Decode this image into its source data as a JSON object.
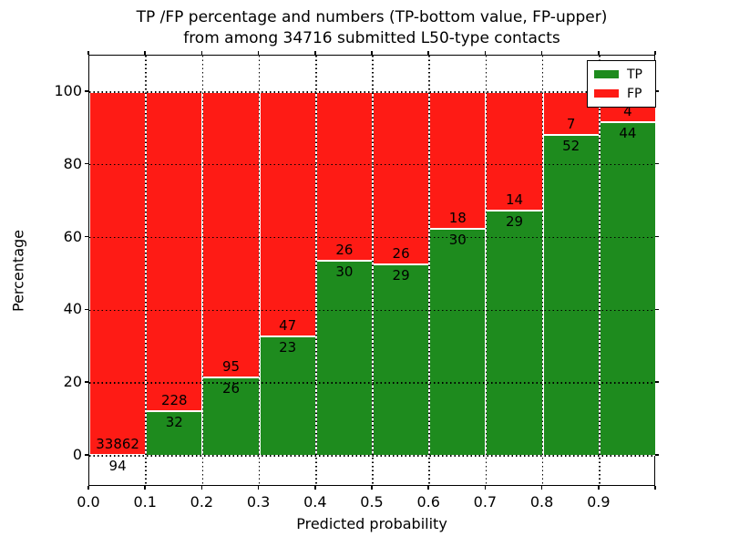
{
  "title": {
    "line1": "TP /FP percentage and numbers (TP-bottom value, FP-upper)",
    "line2": "from among 34716 submitted L50-type contacts"
  },
  "axes": {
    "xlabel": "Predicted probability",
    "ylabel": "Percentage",
    "x_tick_labels": [
      "0.0",
      "0.1",
      "0.2",
      "0.3",
      "0.4",
      "0.5",
      "0.6",
      "0.7",
      "0.8",
      "0.9"
    ],
    "y_tick_labels": [
      "0",
      "20",
      "40",
      "60",
      "80",
      "100"
    ]
  },
  "legend": {
    "items": [
      {
        "label": "TP",
        "color": "#1e8b1e"
      },
      {
        "label": "FP",
        "color": "#fe1b15"
      }
    ]
  },
  "colors": {
    "tp_green": "#1e8b1e",
    "fp_red": "#fe1b15",
    "grid": "#000000",
    "background": "#ffffff"
  },
  "chart_data": {
    "type": "bar",
    "stacked": true,
    "title": "TP /FP percentage and numbers (TP-bottom value, FP-upper) from among 34716 submitted L50-type contacts",
    "xlabel": "Predicted probability",
    "ylabel": "Percentage",
    "xlim": [
      0.0,
      1.0
    ],
    "ylim": [
      -8.5,
      110
    ],
    "grid": true,
    "legend_position": "upper right",
    "bin_edges": [
      0.0,
      0.1,
      0.2,
      0.3,
      0.4,
      0.5,
      0.6,
      0.7,
      0.8,
      0.9,
      1.0
    ],
    "total_contacts": 34716,
    "series": [
      {
        "name": "TP",
        "color": "#1e8b1e",
        "counts": [
          94,
          32,
          26,
          23,
          30,
          29,
          30,
          29,
          52,
          44
        ],
        "percent": [
          0.28,
          12.31,
          21.49,
          32.86,
          53.57,
          52.73,
          62.5,
          67.44,
          88.14,
          91.67
        ]
      },
      {
        "name": "FP",
        "color": "#fe1b15",
        "counts": [
          33862,
          228,
          95,
          47,
          26,
          26,
          18,
          14,
          7,
          4
        ],
        "percent": [
          99.72,
          87.69,
          78.51,
          67.14,
          46.43,
          47.27,
          37.5,
          32.56,
          11.86,
          8.33
        ]
      }
    ]
  }
}
